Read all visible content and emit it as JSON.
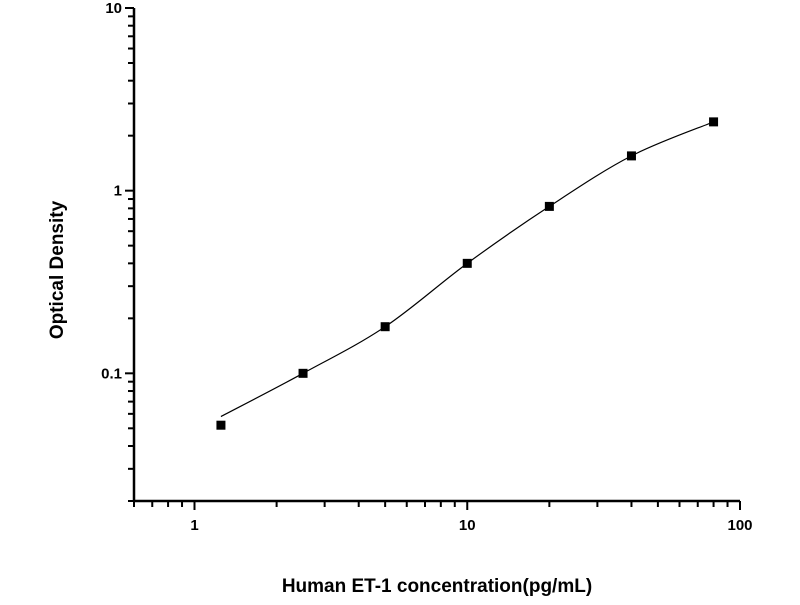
{
  "chart_data": {
    "type": "scatter",
    "title": "",
    "xlabel": "Human ET-1 concentration(pg/mL)",
    "ylabel": "Optical Density",
    "x_scale": "log",
    "y_scale": "log",
    "xlim": [
      0.6,
      100
    ],
    "ylim": [
      0.02,
      10
    ],
    "x_ticks": [
      {
        "value": 1,
        "label": "1"
      },
      {
        "value": 10,
        "label": "10"
      },
      {
        "value": 100,
        "label": "100"
      }
    ],
    "y_ticks": [
      {
        "value": 0.1,
        "label": "0.1"
      },
      {
        "value": 1,
        "label": "1"
      },
      {
        "value": 10,
        "label": "10"
      }
    ],
    "grid": false,
    "series": [
      {
        "marker": "square",
        "fit_line": true,
        "color": "#000000",
        "points": [
          {
            "x": 1.25,
            "y": 0.052
          },
          {
            "x": 2.5,
            "y": 0.1
          },
          {
            "x": 5,
            "y": 0.18
          },
          {
            "x": 10,
            "y": 0.4
          },
          {
            "x": 20,
            "y": 0.82
          },
          {
            "x": 40,
            "y": 1.55
          },
          {
            "x": 80,
            "y": 2.38
          }
        ]
      }
    ]
  }
}
